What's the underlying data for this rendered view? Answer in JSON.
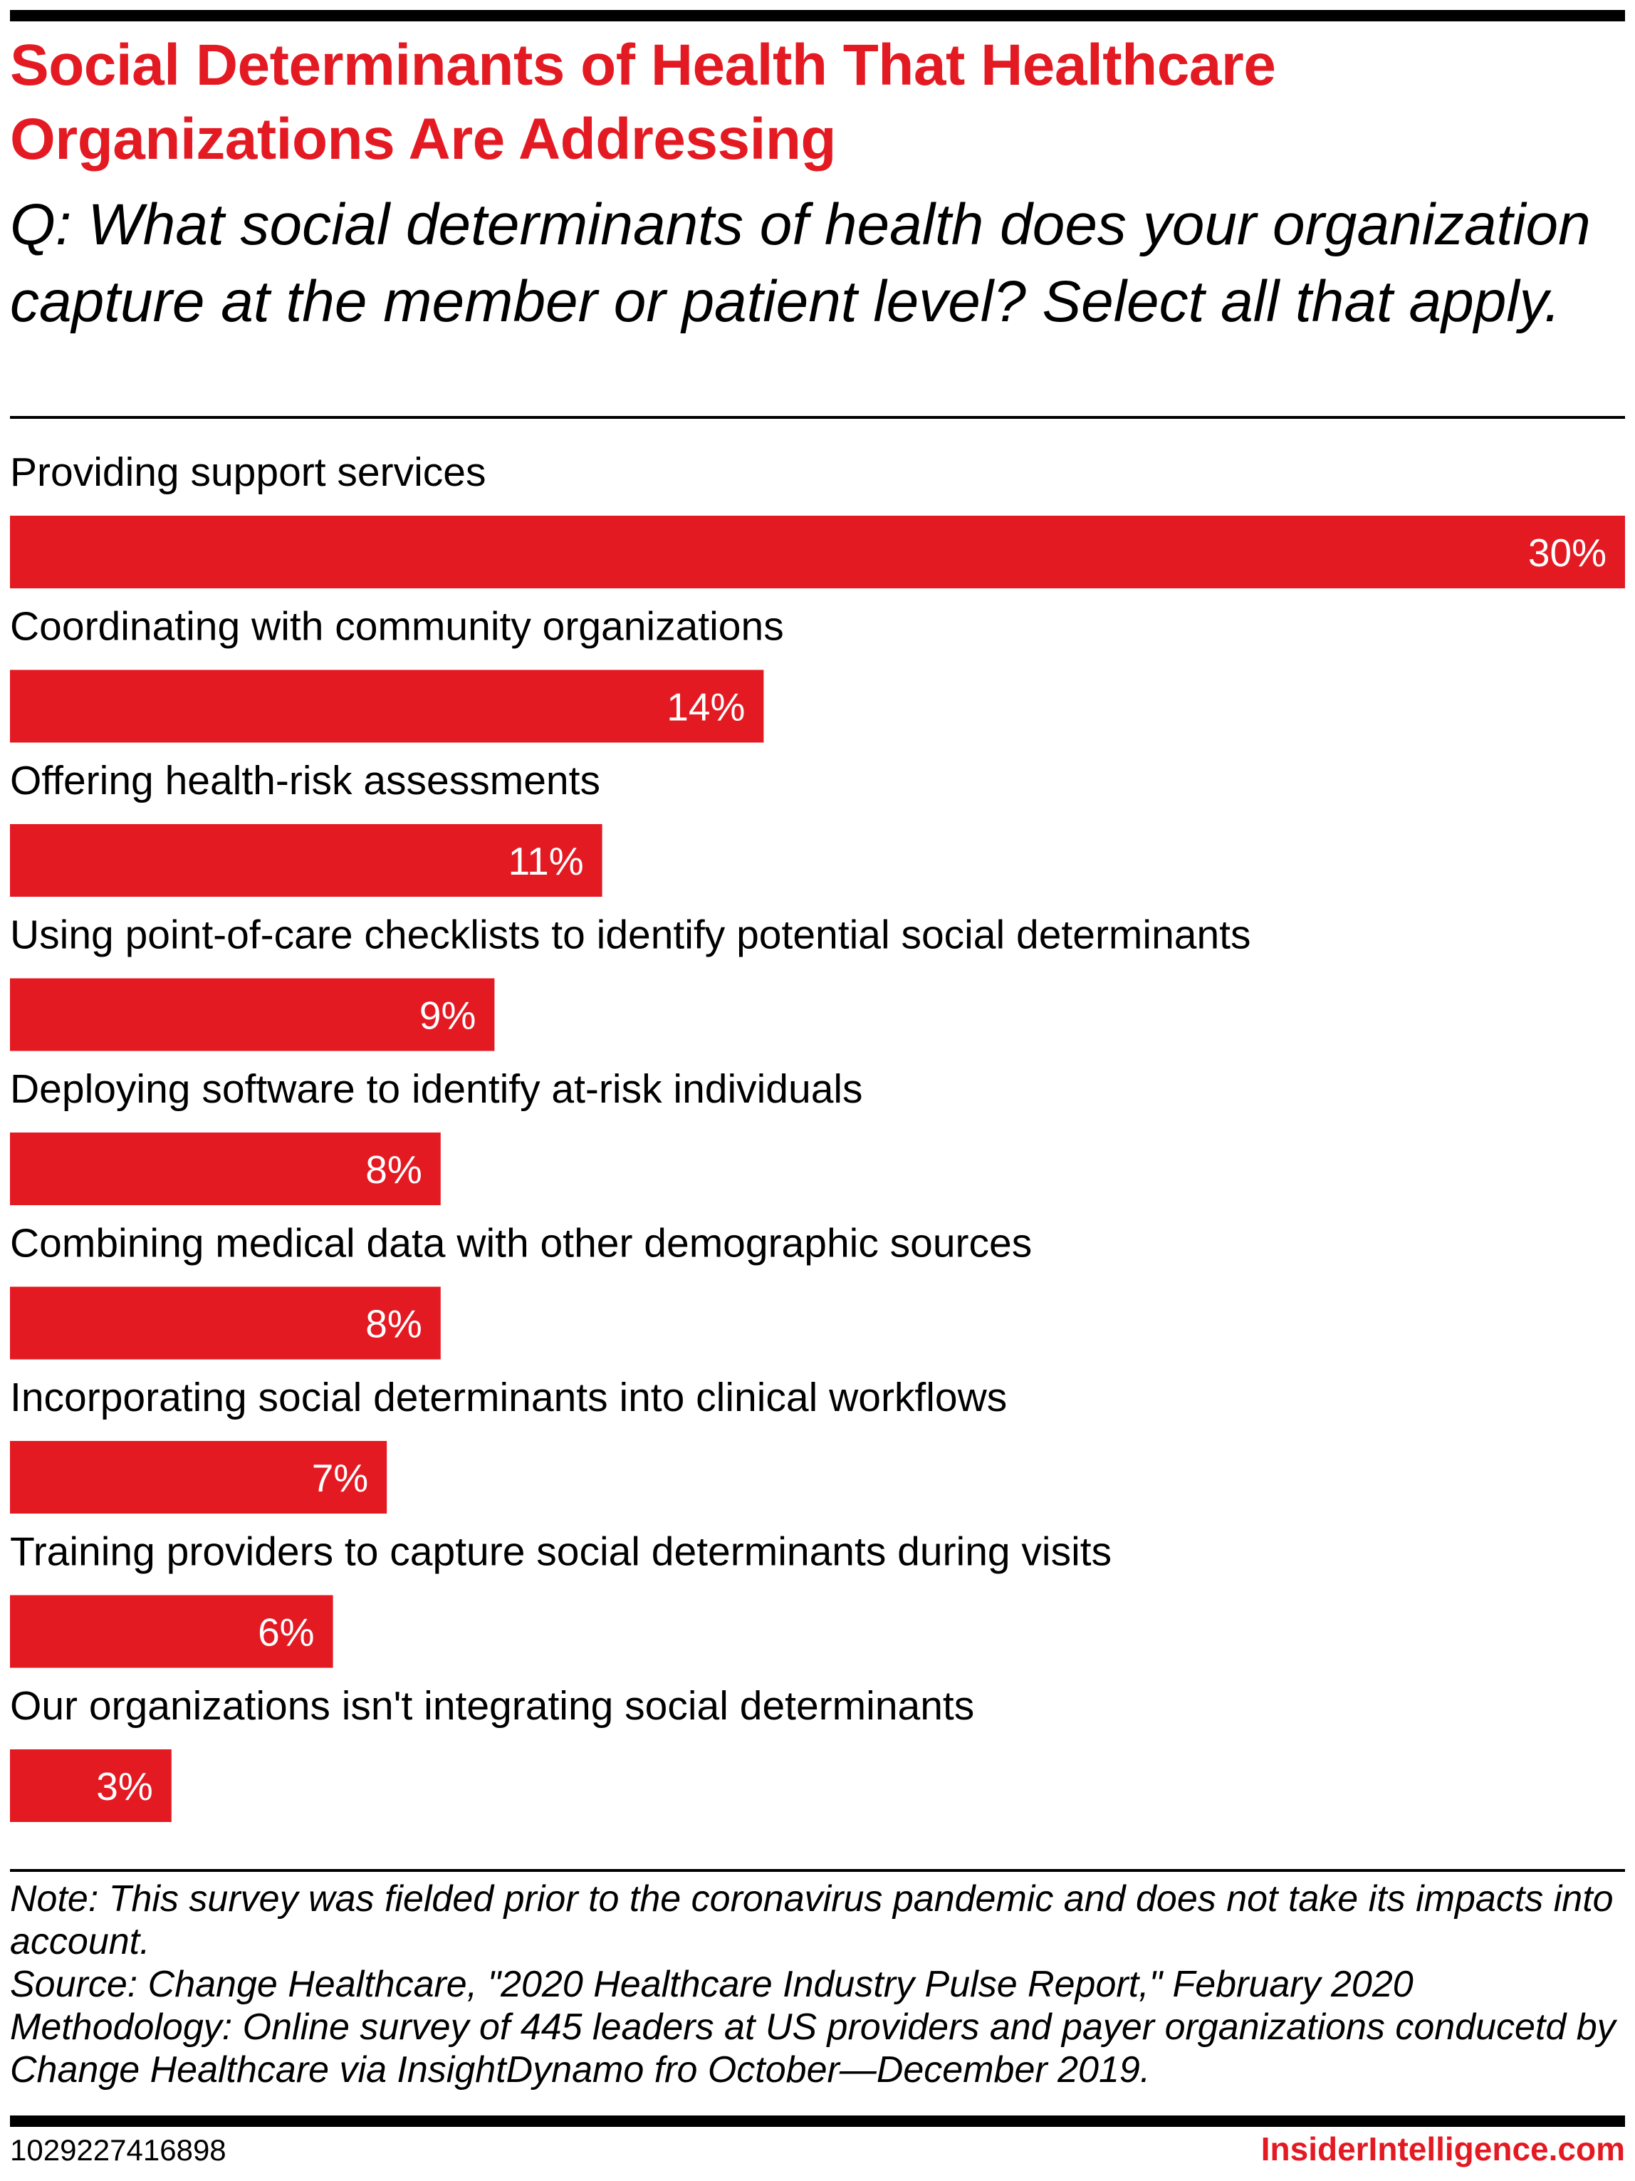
{
  "title": "Social Determinants of Health That Healthcare Organizations Are Addressing",
  "subtitle": "Q: What social determinants of health does your organization capture at the member or patient level? Select all that apply.",
  "colors": {
    "accent": "#e41a23",
    "bar": "#e41a23",
    "rule": "#000000",
    "bar_label": "#ffffff"
  },
  "chart_data": {
    "type": "bar",
    "orientation": "horizontal",
    "categories": [
      "Providing support services",
      "Coordinating with community organizations",
      "Offering health-risk assessments",
      "Using point-of-care checklists to identify potential social determinants",
      "Deploying software to identify at-risk individuals",
      "Combining medical data with other demographic sources",
      "Incorporating social determinants into clinical workflows",
      "Training providers to capture social determinants during visits",
      "Our organizations isn't integrating social determinants"
    ],
    "values": [
      30,
      14,
      11,
      9,
      8,
      8,
      7,
      6,
      3
    ],
    "value_labels": [
      "30%",
      "14%",
      "11%",
      "9%",
      "8%",
      "8%",
      "7%",
      "6%",
      "3%"
    ],
    "unit": "%",
    "xlim": [
      0,
      30
    ],
    "grid": false,
    "legend": "none"
  },
  "notes": {
    "note": "Note: This survey was fielded prior to the coronavirus pandemic and does not take its impacts into account.",
    "source": "Source: Change Healthcare, \"2020 Healthcare Industry Pulse Report,\" February 2020",
    "methodology": "Methodology: Online survey of 445 leaders at US providers and payer organizations conducetd by Change Healthcare via InsightDynamo fro October—December 2019."
  },
  "footer": {
    "chart_id": "1029227416898",
    "brand": "InsiderIntelligence.com"
  }
}
